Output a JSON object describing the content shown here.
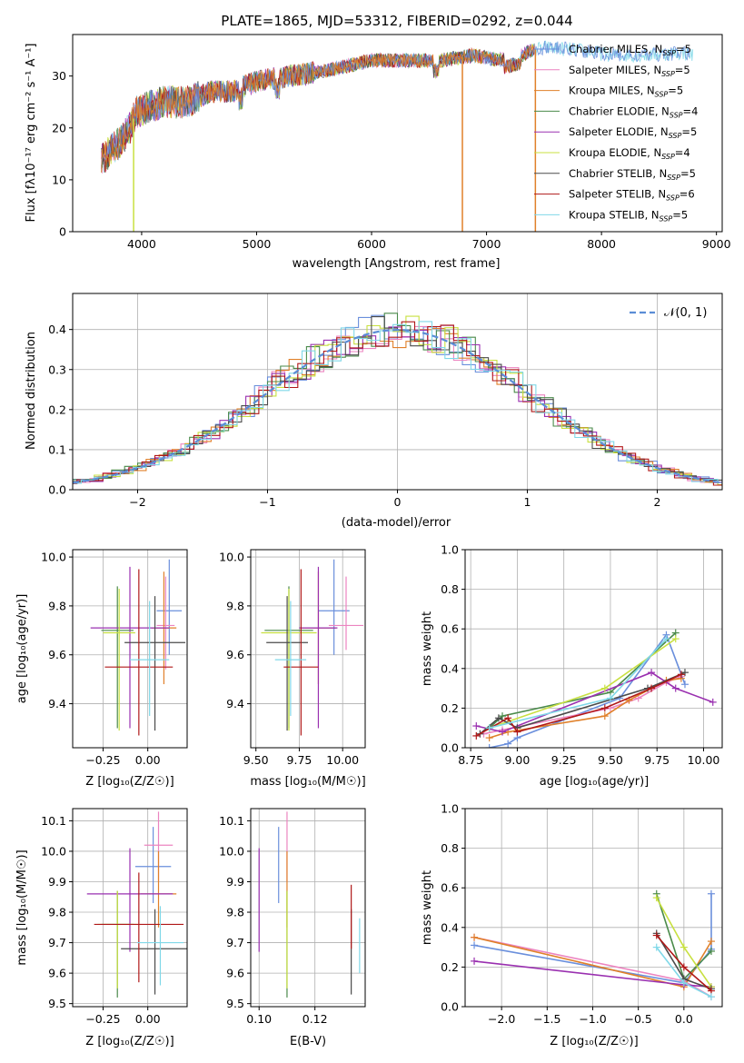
{
  "title": "PLATE=1865, MJD=53312, FIBERID=0292, z=0.044",
  "colors": [
    "#6a8fdc",
    "#ec84c0",
    "#e0802a",
    "#4a8a4a",
    "#9a30b0",
    "#c8e040",
    "#4a4a4a",
    "#b01818",
    "#80d8e8"
  ],
  "legend": [
    {
      "base": "Chabrier MILES, N",
      "sub": "SSP",
      "tail": "=5"
    },
    {
      "base": "Salpeter MILES, N",
      "sub": "SSP",
      "tail": "=5"
    },
    {
      "base": "Kroupa MILES, N",
      "sub": "SSP",
      "tail": "=5"
    },
    {
      "base": "Chabrier ELODIE, N",
      "sub": "SSP",
      "tail": "=4"
    },
    {
      "base": "Salpeter ELODIE, N",
      "sub": "SSP",
      "tail": "=5"
    },
    {
      "base": "Kroupa ELODIE, N",
      "sub": "SSP",
      "tail": "=4"
    },
    {
      "base": "Chabrier STELIB, N",
      "sub": "SSP",
      "tail": "=5"
    },
    {
      "base": "Salpeter STELIB, N",
      "sub": "SSP",
      "tail": "=6"
    },
    {
      "base": "Kroupa STELIB, N",
      "sub": "SSP",
      "tail": "=5"
    }
  ],
  "labels": {
    "spec_x": "wavelength [Angstrom, rest frame]",
    "spec_y": "Flux [fλ10⁻¹⁷ erg cm⁻² s⁻¹ A⁻¹]",
    "hist_x": "(data-model)/error",
    "hist_y": "Normed distribution",
    "hist_legend": "𝒩(0, 1)",
    "age_y": "age  [log₁₀(age/yr)]",
    "z_x": "Z [log₁₀(Z/Z☉)]",
    "mass_x": "mass [log₁₀(M/M☉)]",
    "mass_y": "mass [log₁₀(M/M☉)]",
    "ebv_x": "E(B-V)",
    "weight_y": "mass weight",
    "age_x": "age  [log₁₀(age/yr)]"
  },
  "chart_data": [
    {
      "type": "line",
      "name": "spectrum",
      "xlim": [
        3400,
        9050
      ],
      "ylim": [
        0,
        38
      ],
      "xticks": [
        4000,
        5000,
        6000,
        7000,
        8000,
        9000
      ],
      "yticks": [
        0,
        10,
        20,
        30
      ],
      "continuum": [
        [
          3650,
          14
        ],
        [
          3800,
          17
        ],
        [
          3900,
          20
        ],
        [
          3950,
          23
        ],
        [
          4050,
          24
        ],
        [
          4200,
          25
        ],
        [
          4400,
          25
        ],
        [
          4600,
          27
        ],
        [
          4800,
          27
        ],
        [
          5000,
          29
        ],
        [
          5300,
          30
        ],
        [
          5600,
          31
        ],
        [
          6000,
          33
        ],
        [
          6300,
          33
        ],
        [
          6600,
          33
        ],
        [
          6900,
          34
        ],
        [
          7100,
          33
        ],
        [
          7300,
          34
        ],
        [
          7400,
          35
        ],
        [
          7500,
          35.5
        ],
        [
          7800,
          35
        ],
        [
          8100,
          34
        ],
        [
          8400,
          34
        ],
        [
          8700,
          34.5
        ],
        [
          8800,
          34
        ]
      ]
    },
    {
      "type": "bar",
      "name": "residual histogram",
      "xlim": [
        -2.5,
        2.5
      ],
      "ylim": [
        0,
        0.49
      ],
      "xticks": [
        -2,
        -1,
        0,
        1,
        2
      ],
      "yticks": [
        0.0,
        0.1,
        0.2,
        0.3,
        0.4
      ],
      "series": [
        {
          "name": "𝒩(0, 1)",
          "mu": 0,
          "sigma": 1
        }
      ]
    },
    {
      "type": "scatter",
      "name": "age vs Z",
      "xlim": [
        -0.42,
        0.22
      ],
      "ylim": [
        9.22,
        10.03
      ],
      "xticks": [
        -0.25,
        0.0
      ],
      "yticks": [
        9.4,
        9.6,
        9.8,
        10.0
      ],
      "points": [
        {
          "x": 0.12,
          "y": 9.78,
          "xerr": 0.07,
          "yerr": [
            9.6,
            9.99
          ]
        },
        {
          "x": 0.1,
          "y": 9.72,
          "xerr": 0.05,
          "yerr": [
            9.54,
            9.92
          ]
        },
        {
          "x": 0.09,
          "y": 9.71,
          "xerr": 0.07,
          "yerr": [
            9.48,
            9.94
          ]
        },
        {
          "x": -0.17,
          "y": 9.7,
          "xerr": 0.09,
          "yerr": [
            9.3,
            9.88
          ]
        },
        {
          "x": -0.1,
          "y": 9.71,
          "xerr": 0.22,
          "yerr": [
            9.3,
            9.96
          ]
        },
        {
          "x": -0.16,
          "y": 9.69,
          "xerr": 0.09,
          "yerr": [
            9.29,
            9.87
          ]
        },
        {
          "x": 0.04,
          "y": 9.65,
          "xerr": 0.17,
          "yerr": [
            9.29,
            9.84
          ]
        },
        {
          "x": -0.05,
          "y": 9.55,
          "xerr": 0.19,
          "yerr": [
            9.27,
            9.95
          ]
        },
        {
          "x": 0.01,
          "y": 9.58,
          "xerr": 0.11,
          "yerr": [
            9.35,
            9.82
          ]
        }
      ]
    },
    {
      "type": "scatter",
      "name": "age vs mass",
      "xlim": [
        9.47,
        10.13
      ],
      "ylim": [
        9.22,
        10.03
      ],
      "xticks": [
        9.5,
        9.75,
        10.0
      ],
      "yticks": [
        9.4,
        9.6,
        9.8,
        10.0
      ],
      "points": [
        {
          "x": 9.95,
          "y": 9.78,
          "xerr": 0.09,
          "yerr": [
            9.6,
            9.99
          ]
        },
        {
          "x": 10.02,
          "y": 9.72,
          "xerr": 0.1,
          "yerr": [
            9.62,
            9.92
          ]
        },
        {
          "x": 9.86,
          "y": 9.71,
          "xerr": 0.1,
          "yerr": [
            9.48,
            9.94
          ]
        },
        {
          "x": 9.69,
          "y": 9.7,
          "xerr": 0.14,
          "yerr": [
            9.3,
            9.88
          ]
        },
        {
          "x": 9.86,
          "y": 9.71,
          "xerr": 0.11,
          "yerr": [
            9.3,
            9.96
          ]
        },
        {
          "x": 9.69,
          "y": 9.69,
          "xerr": 0.16,
          "yerr": [
            9.29,
            9.87
          ]
        },
        {
          "x": 9.68,
          "y": 9.65,
          "xerr": 0.12,
          "yerr": [
            9.29,
            9.84
          ]
        },
        {
          "x": 9.76,
          "y": 9.55,
          "xerr": 0.1,
          "yerr": [
            9.27,
            9.95
          ]
        },
        {
          "x": 9.7,
          "y": 9.58,
          "xerr": 0.09,
          "yerr": [
            9.35,
            9.82
          ]
        }
      ]
    },
    {
      "type": "line",
      "name": "mass weight vs age",
      "xlim": [
        8.72,
        10.1
      ],
      "ylim": [
        0,
        1.0
      ],
      "xticks": [
        8.75,
        9.0,
        9.25,
        9.5,
        9.75,
        10.0
      ],
      "yticks": [
        0.0,
        0.2,
        0.4,
        0.6,
        0.8,
        1.0
      ],
      "series": [
        [
          [
            8.85,
            0.0
          ],
          [
            8.95,
            0.02
          ],
          [
            9.0,
            0.05
          ],
          [
            9.55,
            0.25
          ],
          [
            9.8,
            0.57
          ],
          [
            9.9,
            0.32
          ]
        ],
        [
          [
            8.82,
            0.07
          ],
          [
            8.92,
            0.09
          ],
          [
            9.5,
            0.2
          ],
          [
            9.65,
            0.25
          ],
          [
            9.8,
            0.33
          ],
          [
            9.88,
            0.36
          ]
        ],
        [
          [
            8.85,
            0.05
          ],
          [
            8.95,
            0.08
          ],
          [
            9.47,
            0.16
          ],
          [
            9.6,
            0.24
          ],
          [
            9.8,
            0.34
          ],
          [
            9.88,
            0.35
          ]
        ],
        [
          [
            8.85,
            0.1
          ],
          [
            8.92,
            0.16
          ],
          [
            9.5,
            0.28
          ],
          [
            9.85,
            0.58
          ]
        ],
        [
          [
            8.78,
            0.11
          ],
          [
            8.92,
            0.08
          ],
          [
            9.72,
            0.38
          ],
          [
            9.85,
            0.3
          ],
          [
            10.05,
            0.23
          ]
        ],
        [
          [
            8.85,
            0.1
          ],
          [
            9.47,
            0.3
          ],
          [
            9.85,
            0.55
          ]
        ],
        [
          [
            8.8,
            0.07
          ],
          [
            8.9,
            0.15
          ],
          [
            9.0,
            0.1
          ],
          [
            9.7,
            0.3
          ],
          [
            9.9,
            0.38
          ]
        ],
        [
          [
            8.78,
            0.06
          ],
          [
            8.95,
            0.15
          ],
          [
            9.0,
            0.08
          ],
          [
            9.47,
            0.2
          ],
          [
            9.72,
            0.3
          ],
          [
            9.88,
            0.37
          ]
        ],
        [
          [
            8.85,
            0.1
          ],
          [
            9.5,
            0.25
          ],
          [
            9.8,
            0.55
          ]
        ]
      ]
    },
    {
      "type": "scatter",
      "name": "mass vs Z",
      "xlim": [
        -0.42,
        0.22
      ],
      "ylim": [
        9.49,
        10.14
      ],
      "xticks": [
        -0.25,
        0.0
      ],
      "yticks": [
        9.5,
        9.6,
        9.7,
        9.8,
        9.9,
        10.0,
        10.1
      ],
      "points": [
        {
          "x": 0.03,
          "y": 9.95,
          "xerr": 0.1,
          "yerr": [
            9.83,
            10.08
          ]
        },
        {
          "x": 0.06,
          "y": 10.02,
          "xerr": 0.08,
          "yerr": [
            9.9,
            10.13
          ]
        },
        {
          "x": 0.06,
          "y": 9.86,
          "xerr": 0.1,
          "yerr": [
            9.75,
            10.0
          ]
        },
        {
          "x": -0.17,
          "y": 9.76,
          "xerr": 0.09,
          "yerr": [
            9.52,
            9.87
          ]
        },
        {
          "x": -0.1,
          "y": 9.86,
          "xerr": 0.24,
          "yerr": [
            9.67,
            10.01
          ]
        },
        {
          "x": -0.17,
          "y": 9.76,
          "xerr": 0.11,
          "yerr": [
            9.55,
            9.87
          ]
        },
        {
          "x": 0.04,
          "y": 9.68,
          "xerr": 0.19,
          "yerr": [
            9.53,
            9.81
          ]
        },
        {
          "x": -0.05,
          "y": 9.76,
          "xerr": 0.25,
          "yerr": [
            9.57,
            9.93
          ]
        },
        {
          "x": 0.07,
          "y": 9.7,
          "xerr": 0.13,
          "yerr": [
            9.56,
            9.82
          ]
        }
      ]
    },
    {
      "type": "scatter",
      "name": "mass vs E(B-V)",
      "xlim": [
        0.097,
        0.138
      ],
      "ylim": [
        9.49,
        10.14
      ],
      "xticks": [
        0.1,
        0.12
      ],
      "yticks": [
        9.5,
        9.6,
        9.7,
        9.8,
        9.9,
        10.0,
        10.1
      ],
      "points": [
        {
          "x": 0.107,
          "y": 9.95,
          "yerr": [
            9.83,
            10.08
          ]
        },
        {
          "x": 0.11,
          "y": 10.02,
          "yerr": [
            9.9,
            10.13
          ]
        },
        {
          "x": 0.11,
          "y": 9.86,
          "yerr": [
            9.75,
            10.0
          ]
        },
        {
          "x": 0.11,
          "y": 9.76,
          "yerr": [
            9.52,
            9.87
          ]
        },
        {
          "x": 0.1,
          "y": 9.86,
          "yerr": [
            9.67,
            10.01
          ]
        },
        {
          "x": 0.11,
          "y": 9.76,
          "yerr": [
            9.55,
            9.87
          ]
        },
        {
          "x": 0.133,
          "y": 9.68,
          "yerr": [
            9.53,
            9.81
          ]
        },
        {
          "x": 0.133,
          "y": 9.76,
          "yerr": [
            9.68,
            9.89
          ]
        },
        {
          "x": 0.136,
          "y": 9.7,
          "yerr": [
            9.6,
            9.78
          ]
        }
      ]
    },
    {
      "type": "line",
      "name": "mass weight vs Z",
      "xlim": [
        -2.4,
        0.42
      ],
      "ylim": [
        0,
        1.0
      ],
      "xticks": [
        -2.0,
        -1.5,
        -1.0,
        -0.5,
        0.0
      ],
      "yticks": [
        0.0,
        0.2,
        0.4,
        0.6,
        0.8,
        1.0
      ],
      "series": [
        [
          [
            -2.3,
            0.31
          ],
          [
            0.0,
            0.12
          ],
          [
            0.3,
            0.29
          ],
          [
            0.3,
            0.57
          ]
        ],
        [
          [
            -2.3,
            0.35
          ],
          [
            0.0,
            0.13
          ],
          [
            0.3,
            0.05
          ]
        ],
        [
          [
            -2.3,
            0.35
          ],
          [
            0.0,
            0.1
          ],
          [
            0.3,
            0.33
          ]
        ],
        [
          [
            -0.3,
            0.57
          ],
          [
            0.0,
            0.14
          ],
          [
            0.3,
            0.28
          ]
        ],
        [
          [
            -2.3,
            0.23
          ],
          [
            0.0,
            0.11
          ],
          [
            0.3,
            0.1
          ]
        ],
        [
          [
            -0.3,
            0.55
          ],
          [
            0.0,
            0.3
          ],
          [
            0.3,
            0.1
          ]
        ],
        [
          [
            -0.3,
            0.37
          ],
          [
            0.0,
            0.14
          ],
          [
            0.3,
            0.09
          ]
        ],
        [
          [
            -0.3,
            0.36
          ],
          [
            0.0,
            0.2
          ],
          [
            0.3,
            0.08
          ]
        ],
        [
          [
            -0.3,
            0.3
          ],
          [
            0.0,
            0.12
          ],
          [
            0.3,
            0.05
          ]
        ]
      ]
    }
  ]
}
